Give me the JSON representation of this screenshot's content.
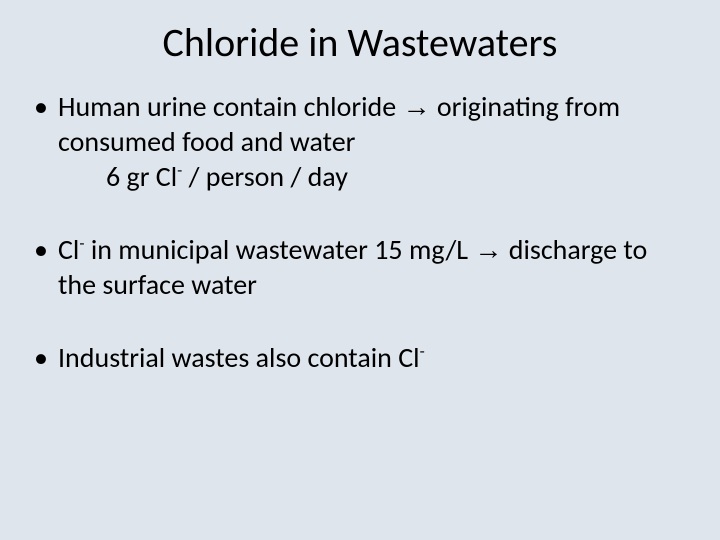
{
  "background_color": "#dee5ed",
  "text_color": "#000000",
  "title": {
    "text": "Chloride in Wastewaters",
    "fontsize": 40
  },
  "body": {
    "fontsize": 28,
    "bullets": [
      {
        "line1_pre": "Human urine contain chloride ",
        "line1_arrow": "→",
        "line1_post": " originating from consumed food and water",
        "sub_pre": "6 gr Cl",
        "sub_sup": "-",
        "sub_post": " / person / day"
      },
      {
        "line_pre": "Cl",
        "sup1": "-",
        "line_mid": " in municipal wastewater 15 mg/L ",
        "arrow": "→",
        "line_post": " discharge to the surface water"
      },
      {
        "line_pre": "Industrial wastes also contain Cl",
        "sup": "-"
      }
    ]
  }
}
